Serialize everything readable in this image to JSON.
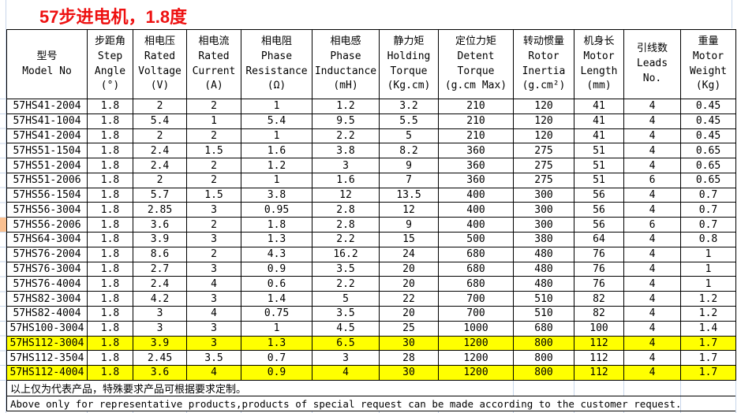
{
  "title": "57步进电机，1.8度",
  "colors": {
    "title_red": "#ee1111",
    "row_highlight_yellow": "#ffff00",
    "gridline_light": "#c8d6ea",
    "left_strip_orange_cell": "#fac090",
    "table_border": "#000000"
  },
  "table": {
    "columns": [
      {
        "zh": "型号",
        "en_lines": [
          "Model No"
        ],
        "unit": ""
      },
      {
        "zh": "步距角",
        "en_lines": [
          "Step",
          "Angle"
        ],
        "unit": "(°)"
      },
      {
        "zh": "相电压",
        "en_lines": [
          "Rated",
          "Voltage"
        ],
        "unit": "(V)"
      },
      {
        "zh": "相电流",
        "en_lines": [
          "Rated",
          "Current"
        ],
        "unit": "(A)"
      },
      {
        "zh": "相电阻",
        "en_lines": [
          "Phase",
          "Resistance"
        ],
        "unit": "(Ω)"
      },
      {
        "zh": "相电感",
        "en_lines": [
          "Phase",
          "Inductance"
        ],
        "unit": "(mH)"
      },
      {
        "zh": "静力矩",
        "en_lines": [
          "Holding",
          "Torque"
        ],
        "unit": "(Kg.cm)"
      },
      {
        "zh": "定位力矩",
        "en_lines": [
          "Detent",
          "Torque"
        ],
        "unit": "(g.cm Max)"
      },
      {
        "zh": "转动惯量",
        "en_lines": [
          "Rotor",
          "Inertia"
        ],
        "unit": "(g.cm²)"
      },
      {
        "zh": "机身长",
        "en_lines": [
          "Motor",
          "Length"
        ],
        "unit": "(mm)"
      },
      {
        "zh": "引线数",
        "en_lines": [
          "Leads",
          "No."
        ],
        "unit": ""
      },
      {
        "zh": "重量",
        "en_lines": [
          "Motor",
          "Weight"
        ],
        "unit": "(Kg)"
      }
    ],
    "rows": [
      {
        "model": "57HS41-2004",
        "values": [
          "1.8",
          "2",
          "2",
          "1",
          "1.2",
          "3.2",
          "210",
          "120",
          "41",
          "4",
          "0.45"
        ],
        "highlight": false
      },
      {
        "model": "57HS41-1004",
        "values": [
          "1.8",
          "5.4",
          "1",
          "5.4",
          "9.5",
          "5.5",
          "210",
          "120",
          "41",
          "4",
          "0.45"
        ],
        "highlight": false
      },
      {
        "model": "57HS41-2004",
        "values": [
          "1.8",
          "2",
          "2",
          "1",
          "2.2",
          "5",
          "210",
          "120",
          "41",
          "4",
          "0.45"
        ],
        "highlight": false
      },
      {
        "model": "57HS51-1504",
        "values": [
          "1.8",
          "2.4",
          "1.5",
          "1.6",
          "3.8",
          "8.2",
          "360",
          "275",
          "51",
          "4",
          "0.65"
        ],
        "highlight": false
      },
      {
        "model": "57HS51-2004",
        "values": [
          "1.8",
          "2.4",
          "2",
          "1.2",
          "3",
          "9",
          "360",
          "275",
          "51",
          "4",
          "0.65"
        ],
        "highlight": false
      },
      {
        "model": "57HS51-2006",
        "values": [
          "1.8",
          "2",
          "2",
          "1",
          "1.6",
          "7",
          "360",
          "275",
          "51",
          "6",
          "0.65"
        ],
        "highlight": false
      },
      {
        "model": "57HS56-1504",
        "values": [
          "1.8",
          "5.7",
          "1.5",
          "3.8",
          "12",
          "13.5",
          "400",
          "300",
          "56",
          "4",
          "0.7"
        ],
        "highlight": false
      },
      {
        "model": "57HS56-3004",
        "values": [
          "1.8",
          "2.85",
          "3",
          "0.95",
          "2.8",
          "12",
          "400",
          "300",
          "56",
          "4",
          "0.7"
        ],
        "highlight": false
      },
      {
        "model": "57HS56-2006",
        "values": [
          "1.8",
          "3.6",
          "2",
          "1.8",
          "2.8",
          "9",
          "400",
          "300",
          "56",
          "6",
          "0.7"
        ],
        "highlight": false
      },
      {
        "model": "57HS64-3004",
        "values": [
          "1.8",
          "3.9",
          "3",
          "1.3",
          "2.2",
          "15",
          "500",
          "380",
          "64",
          "4",
          "0.8"
        ],
        "highlight": false
      },
      {
        "model": "57HS76-2004",
        "values": [
          "1.8",
          "8.6",
          "2",
          "4.3",
          "16.2",
          "24",
          "680",
          "480",
          "76",
          "4",
          "1"
        ],
        "highlight": false
      },
      {
        "model": "57HS76-3004",
        "values": [
          "1.8",
          "2.7",
          "3",
          "0.9",
          "3.5",
          "20",
          "680",
          "480",
          "76",
          "4",
          "1"
        ],
        "highlight": false
      },
      {
        "model": "57HS76-4004",
        "values": [
          "1.8",
          "2.4",
          "4",
          "0.6",
          "2.2",
          "20",
          "680",
          "480",
          "76",
          "4",
          "1"
        ],
        "highlight": false
      },
      {
        "model": "57HS82-3004",
        "values": [
          "1.8",
          "4.2",
          "3",
          "1.4",
          "5",
          "22",
          "700",
          "510",
          "82",
          "4",
          "1.2"
        ],
        "highlight": false
      },
      {
        "model": "57HS82-4004",
        "values": [
          "1.8",
          "3",
          "4",
          "0.75",
          "3.5",
          "20",
          "700",
          "510",
          "82",
          "4",
          "1.2"
        ],
        "highlight": false
      },
      {
        "model": "57HS100-3004",
        "values": [
          "1.8",
          "3",
          "3",
          "1",
          "4.5",
          "25",
          "1000",
          "680",
          "100",
          "4",
          "1.4"
        ],
        "highlight": false
      },
      {
        "model": "57HS112-3004",
        "values": [
          "1.8",
          "3.9",
          "3",
          "1.3",
          "6.5",
          "30",
          "1200",
          "800",
          "112",
          "4",
          "1.7"
        ],
        "highlight": true
      },
      {
        "model": "57HS112-3504",
        "values": [
          "1.8",
          "2.45",
          "3.5",
          "0.7",
          "3",
          "28",
          "1200",
          "800",
          "112",
          "4",
          "1.7"
        ],
        "highlight": false
      },
      {
        "model": "57HS112-4004",
        "values": [
          "1.8",
          "3.6",
          "4",
          "0.9",
          "4",
          "30",
          "1200",
          "800",
          "112",
          "4",
          "1.7"
        ],
        "highlight": true
      }
    ]
  },
  "notes": {
    "zh": "以上仅为代表产品，特殊要求产品可根据要求定制。",
    "en": "Above only for representative products,products of special request can be made according to the customer request."
  }
}
